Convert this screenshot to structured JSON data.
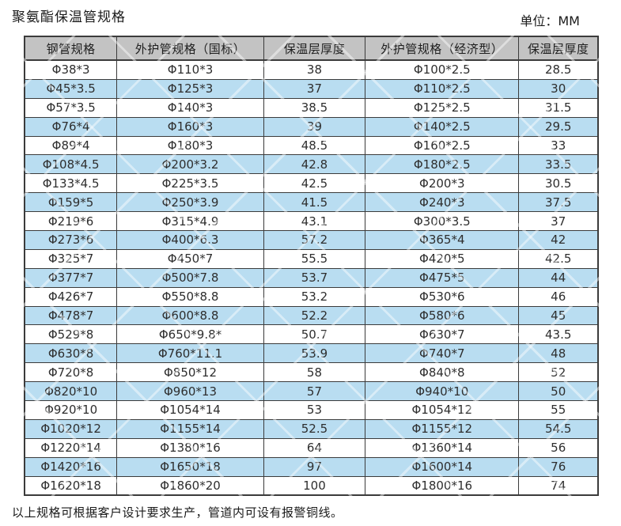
{
  "page": {
    "title": "聚氨酯保温管规格",
    "unit_label": "单位：MM",
    "footnote": "以上规格可根据客户设计要求生产，管道内可设有报警铜线。"
  },
  "colors": {
    "header_bg": "#c3c3c3",
    "stripe_blue": "#b9ddf1",
    "border": "#3b3b3b",
    "text": "#2e2e2e"
  },
  "table": {
    "headers": [
      "钢管规格",
      "外护管规格（国标）",
      "保温层厚度",
      "外护管规格（经济型）",
      "保温层厚度"
    ],
    "rows": [
      [
        "Φ38*3",
        "Φ110*3",
        "38",
        "Φ100*2.5",
        "28.5"
      ],
      [
        "Φ45*3.5",
        "Φ125*3",
        "37",
        "Φ110*2.5",
        "30"
      ],
      [
        "Φ57*3.5",
        "Φ140*3",
        "38.5",
        "Φ125*2.5",
        "31.5"
      ],
      [
        "Φ76*4",
        "Φ160*3",
        "39",
        "Φ140*2.5",
        "29.5"
      ],
      [
        "Φ89*4",
        "Φ180*3",
        "48.5",
        "Φ160*2.5",
        "33"
      ],
      [
        "Φ108*4.5",
        "Φ200*3.2",
        "42.8",
        "Φ180*2.5",
        "33.5"
      ],
      [
        "Φ133*4.5",
        "Φ225*3.5",
        "42.5",
        "Φ200*3",
        "30.5"
      ],
      [
        "Φ159*5",
        "Φ250*3.9",
        "41.5",
        "Φ240*3",
        "37.5"
      ],
      [
        "Φ219*6",
        "Φ315*4.9",
        "43.1",
        "Φ300*3.5",
        "37"
      ],
      [
        "Φ273*6",
        "Φ400*6.3",
        "57.2",
        "Φ365*4",
        "42"
      ],
      [
        "Φ325*7",
        "Φ450*7",
        "55.5",
        "Φ420*5",
        "42.5"
      ],
      [
        "Φ377*7",
        "Φ500*7.8",
        "53.7",
        "Φ475*5",
        "44"
      ],
      [
        "Φ426*7",
        "Φ550*8.8",
        "53.2",
        "Φ530*6",
        "46"
      ],
      [
        "Φ478*7",
        "Φ600*8.8",
        "52.2",
        "Φ580*6",
        "45"
      ],
      [
        "Φ529*8",
        "Φ650*9.8*",
        "50.7",
        "Φ630*7",
        "43.5"
      ],
      [
        "Φ630*8",
        "Φ760*11.1",
        "53.9",
        "Φ740*7",
        "48"
      ],
      [
        "Φ720*8",
        "Φ850*12",
        "58",
        "Φ840*8",
        "52"
      ],
      [
        "Φ820*10",
        "Φ960*13",
        "57",
        "Φ940*10",
        "50"
      ],
      [
        "Φ920*10",
        "Φ1054*14",
        "53",
        "Φ1054*12",
        "55"
      ],
      [
        "Φ1020*12",
        "Φ1155*14",
        "52.5",
        "Φ1155*12",
        "54.5"
      ],
      [
        "Φ1220*14",
        "Φ1380*16",
        "64",
        "Φ1360*14",
        "56"
      ],
      [
        "Φ1420*16",
        "Φ1650*18",
        "97",
        "Φ1600*14",
        "76"
      ],
      [
        "Φ1620*18",
        "Φ1860*20",
        "100",
        "Φ1800*16",
        "74"
      ]
    ]
  }
}
